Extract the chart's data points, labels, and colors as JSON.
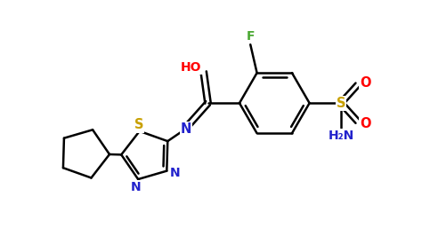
{
  "bg_color": "#ffffff",
  "bond_color": "#000000",
  "bond_width": 1.8,
  "atom_colors": {
    "F": "#4aa832",
    "O": "#ff0000",
    "N": "#2222cc",
    "S": "#c8a000"
  },
  "fig_width": 4.74,
  "fig_height": 2.57,
  "dpi": 100
}
